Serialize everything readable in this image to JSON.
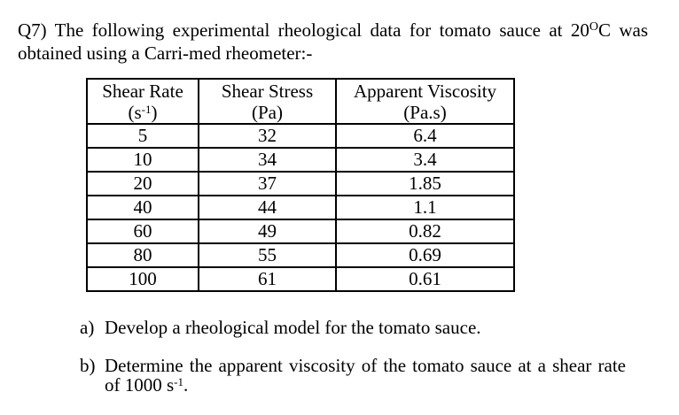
{
  "question": {
    "line1_pre": "Q7) The following experimental rheological data for tomato sauce at 20",
    "line1_sup": "O",
    "line1_post": "C was",
    "line2": "obtained using a Carri-med rheometer:-"
  },
  "table": {
    "headers": [
      {
        "title": "Shear Rate",
        "unit_pre": "(s",
        "unit_sup": "-1",
        "unit_post": ")"
      },
      {
        "title": "Shear Stress",
        "unit": "(Pa)"
      },
      {
        "title": "Apparent Viscosity",
        "unit": "(Pa.s)"
      }
    ],
    "rows": [
      [
        "5",
        "32",
        "6.4"
      ],
      [
        "10",
        "34",
        "3.4"
      ],
      [
        "20",
        "37",
        "1.85"
      ],
      [
        "40",
        "44",
        "1.1"
      ],
      [
        "60",
        "49",
        "0.82"
      ],
      [
        "80",
        "55",
        "0.69"
      ],
      [
        "100",
        "61",
        "0.61"
      ]
    ]
  },
  "parts": {
    "a_label": "a)",
    "a_text": "Develop a rheological model for the tomato sauce.",
    "b_label": "b)",
    "b_line1": "Determine the apparent viscosity of the tomato sauce at a shear rate",
    "b_line2_pre": "of 1000 s",
    "b_line2_sup": "-1",
    "b_line2_post": "."
  }
}
